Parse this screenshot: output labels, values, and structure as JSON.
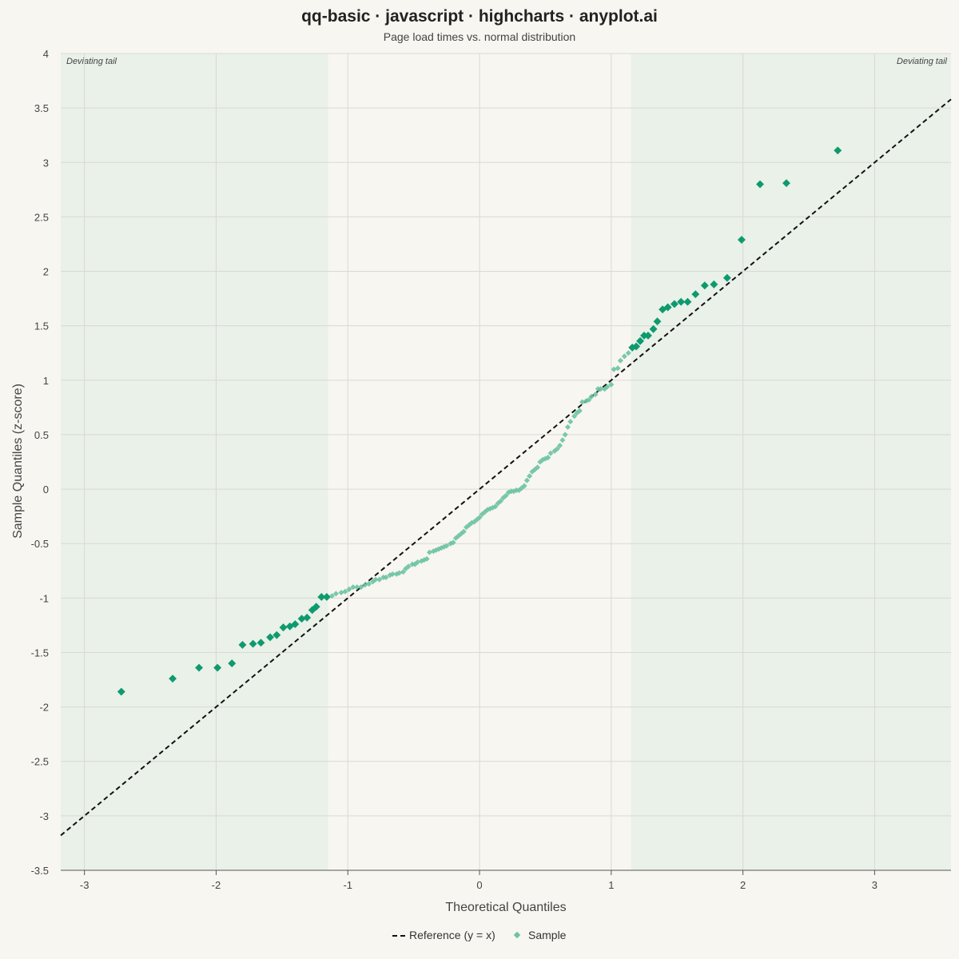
{
  "chart_data": {
    "type": "scatter",
    "title": "qq-basic · javascript · highcharts · anyplot.ai",
    "subtitle": "Page load times vs. normal distribution",
    "xlabel": "Theoretical Quantiles",
    "ylabel": "Sample Quantiles (z-score)",
    "xlim": [
      -3.18,
      3.58
    ],
    "ylim": [
      -3.5,
      4
    ],
    "xticks": [
      -3,
      -2,
      -1,
      0,
      1,
      2,
      3
    ],
    "yticks": [
      4,
      3.5,
      3,
      2.5,
      2,
      1.5,
      1,
      0.5,
      0,
      -0.5,
      -1,
      -1.5,
      -2,
      -2.5,
      -3,
      -3.5
    ],
    "grid": true,
    "legend_position": "bottom-center",
    "colors": {
      "background": "#F8F6F0",
      "tail_band": "#E9F1E9",
      "tail_point": "#0E9A6E",
      "body_point": "#6CC3A3",
      "reference": "#111111",
      "grid": "#D9D9D3",
      "axis": "#555555"
    },
    "tail_bands": [
      {
        "label": "Deviating tail",
        "x_range": [
          -3.18,
          -1.15
        ],
        "label_align": "left"
      },
      {
        "label": "Deviating tail",
        "x_range": [
          1.15,
          3.58
        ],
        "label_align": "right"
      }
    ],
    "reference_line": {
      "name": "Reference (y = x)",
      "slope": 1,
      "intercept": 0
    },
    "series": [
      {
        "name": "Sample",
        "points": [
          [
            -2.72,
            -1.86
          ],
          [
            -2.33,
            -1.74
          ],
          [
            -2.13,
            -1.64
          ],
          [
            -1.99,
            -1.64
          ],
          [
            -1.88,
            -1.6
          ],
          [
            -1.8,
            -1.43
          ],
          [
            -1.72,
            -1.42
          ],
          [
            -1.66,
            -1.41
          ],
          [
            -1.59,
            -1.36
          ],
          [
            -1.54,
            -1.34
          ],
          [
            -1.49,
            -1.27
          ],
          [
            -1.44,
            -1.26
          ],
          [
            -1.4,
            -1.24
          ],
          [
            -1.35,
            -1.19
          ],
          [
            -1.31,
            -1.18
          ],
          [
            -1.27,
            -1.11
          ],
          [
            -1.24,
            -1.08
          ],
          [
            -1.2,
            -0.99
          ],
          [
            -1.16,
            -0.99
          ],
          [
            -1.12,
            -0.98
          ],
          [
            -1.09,
            -0.96
          ],
          [
            -1.05,
            -0.95
          ],
          [
            -1.02,
            -0.94
          ],
          [
            -0.99,
            -0.92
          ],
          [
            -0.96,
            -0.9
          ],
          [
            -0.93,
            -0.9
          ],
          [
            -0.9,
            -0.9
          ],
          [
            -0.87,
            -0.88
          ],
          [
            -0.84,
            -0.87
          ],
          [
            -0.81,
            -0.85
          ],
          [
            -0.79,
            -0.83
          ],
          [
            -0.76,
            -0.83
          ],
          [
            -0.73,
            -0.81
          ],
          [
            -0.71,
            -0.81
          ],
          [
            -0.68,
            -0.79
          ],
          [
            -0.66,
            -0.78
          ],
          [
            -0.63,
            -0.78
          ],
          [
            -0.61,
            -0.77
          ],
          [
            -0.58,
            -0.76
          ],
          [
            -0.56,
            -0.73
          ],
          [
            -0.54,
            -0.71
          ],
          [
            -0.51,
            -0.69
          ],
          [
            -0.49,
            -0.69
          ],
          [
            -0.47,
            -0.67
          ],
          [
            -0.44,
            -0.66
          ],
          [
            -0.42,
            -0.65
          ],
          [
            -0.4,
            -0.64
          ],
          [
            -0.38,
            -0.58
          ],
          [
            -0.35,
            -0.57
          ],
          [
            -0.33,
            -0.56
          ],
          [
            -0.31,
            -0.55
          ],
          [
            -0.29,
            -0.54
          ],
          [
            -0.27,
            -0.53
          ],
          [
            -0.25,
            -0.52
          ],
          [
            -0.22,
            -0.5
          ],
          [
            -0.2,
            -0.49
          ],
          [
            -0.18,
            -0.45
          ],
          [
            -0.16,
            -0.43
          ],
          [
            -0.14,
            -0.41
          ],
          [
            -0.12,
            -0.39
          ],
          [
            -0.1,
            -0.35
          ],
          [
            -0.08,
            -0.33
          ],
          [
            -0.06,
            -0.31
          ],
          [
            -0.04,
            -0.3
          ],
          [
            -0.02,
            -0.28
          ],
          [
            0.0,
            -0.26
          ],
          [
            0.02,
            -0.23
          ],
          [
            0.04,
            -0.21
          ],
          [
            0.06,
            -0.19
          ],
          [
            0.08,
            -0.18
          ],
          [
            0.1,
            -0.17
          ],
          [
            0.12,
            -0.16
          ],
          [
            0.14,
            -0.13
          ],
          [
            0.16,
            -0.11
          ],
          [
            0.18,
            -0.08
          ],
          [
            0.2,
            -0.06
          ],
          [
            0.22,
            -0.03
          ],
          [
            0.24,
            -0.02
          ],
          [
            0.26,
            -0.02
          ],
          [
            0.28,
            -0.01
          ],
          [
            0.3,
            -0.01
          ],
          [
            0.32,
            0.01
          ],
          [
            0.34,
            0.03
          ],
          [
            0.36,
            0.08
          ],
          [
            0.38,
            0.12
          ],
          [
            0.4,
            0.16
          ],
          [
            0.42,
            0.18
          ],
          [
            0.44,
            0.2
          ],
          [
            0.46,
            0.25
          ],
          [
            0.48,
            0.27
          ],
          [
            0.5,
            0.28
          ],
          [
            0.52,
            0.29
          ],
          [
            0.54,
            0.33
          ],
          [
            0.57,
            0.35
          ],
          [
            0.59,
            0.37
          ],
          [
            0.61,
            0.4
          ],
          [
            0.63,
            0.45
          ],
          [
            0.65,
            0.5
          ],
          [
            0.67,
            0.57
          ],
          [
            0.69,
            0.62
          ],
          [
            0.72,
            0.67
          ],
          [
            0.74,
            0.7
          ],
          [
            0.76,
            0.72
          ],
          [
            0.78,
            0.8
          ],
          [
            0.81,
            0.81
          ],
          [
            0.83,
            0.82
          ],
          [
            0.85,
            0.85
          ],
          [
            0.88,
            0.87
          ],
          [
            0.9,
            0.92
          ],
          [
            0.92,
            0.92
          ],
          [
            0.95,
            0.92
          ],
          [
            0.97,
            0.94
          ],
          [
            1.0,
            0.96
          ],
          [
            1.02,
            1.1
          ],
          [
            1.05,
            1.11
          ],
          [
            1.07,
            1.18
          ],
          [
            1.1,
            1.22
          ],
          [
            1.13,
            1.25
          ],
          [
            1.16,
            1.3
          ],
          [
            1.19,
            1.31
          ],
          [
            1.22,
            1.36
          ],
          [
            1.25,
            1.41
          ],
          [
            1.28,
            1.41
          ],
          [
            1.32,
            1.47
          ],
          [
            1.35,
            1.54
          ],
          [
            1.39,
            1.65
          ],
          [
            1.43,
            1.67
          ],
          [
            1.48,
            1.7
          ],
          [
            1.53,
            1.72
          ],
          [
            1.58,
            1.72
          ],
          [
            1.64,
            1.79
          ],
          [
            1.71,
            1.87
          ],
          [
            1.78,
            1.88
          ],
          [
            1.88,
            1.94
          ],
          [
            1.99,
            2.29
          ],
          [
            2.13,
            2.8
          ],
          [
            2.33,
            2.81
          ],
          [
            2.72,
            3.11
          ]
        ]
      }
    ]
  }
}
